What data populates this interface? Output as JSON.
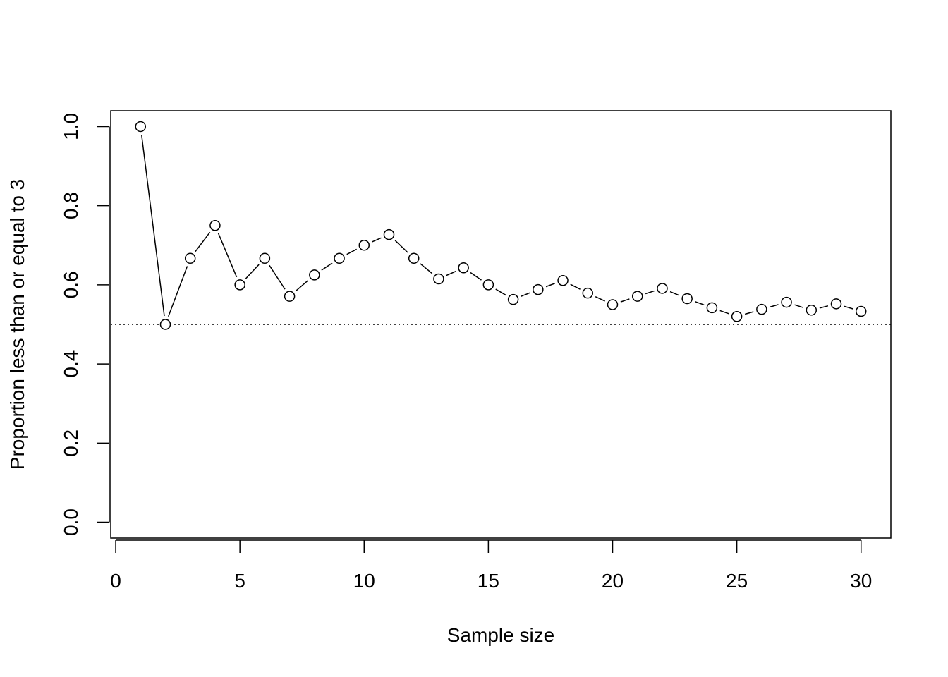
{
  "chart_data": {
    "type": "line",
    "title": "",
    "xlabel": "Sample size",
    "ylabel": "Proportion less than or equal to 3",
    "xlim": [
      -0.2,
      31.2
    ],
    "ylim": [
      -0.04,
      1.04
    ],
    "x_ticks": [
      "0",
      "5",
      "10",
      "15",
      "20",
      "25",
      "30"
    ],
    "y_ticks": [
      "0.0",
      "0.2",
      "0.4",
      "0.6",
      "0.8",
      "1.0"
    ],
    "grid": false,
    "reference_line": {
      "y": 0.5,
      "style": "dotted"
    },
    "series": [
      {
        "style": "points-and-lines",
        "x": [
          1,
          2,
          3,
          4,
          5,
          6,
          7,
          8,
          9,
          10,
          11,
          12,
          13,
          14,
          15,
          16,
          17,
          18,
          19,
          20,
          21,
          22,
          23,
          24,
          25,
          26,
          27,
          28,
          29,
          30
        ],
        "values": [
          1.0,
          0.5,
          0.667,
          0.75,
          0.6,
          0.667,
          0.571,
          0.625,
          0.667,
          0.7,
          0.727,
          0.667,
          0.615,
          0.643,
          0.6,
          0.563,
          0.588,
          0.611,
          0.579,
          0.55,
          0.571,
          0.591,
          0.565,
          0.542,
          0.52,
          0.538,
          0.556,
          0.536,
          0.552,
          0.533
        ]
      }
    ],
    "colors": {
      "marks": "#000000",
      "background": "#ffffff"
    }
  }
}
